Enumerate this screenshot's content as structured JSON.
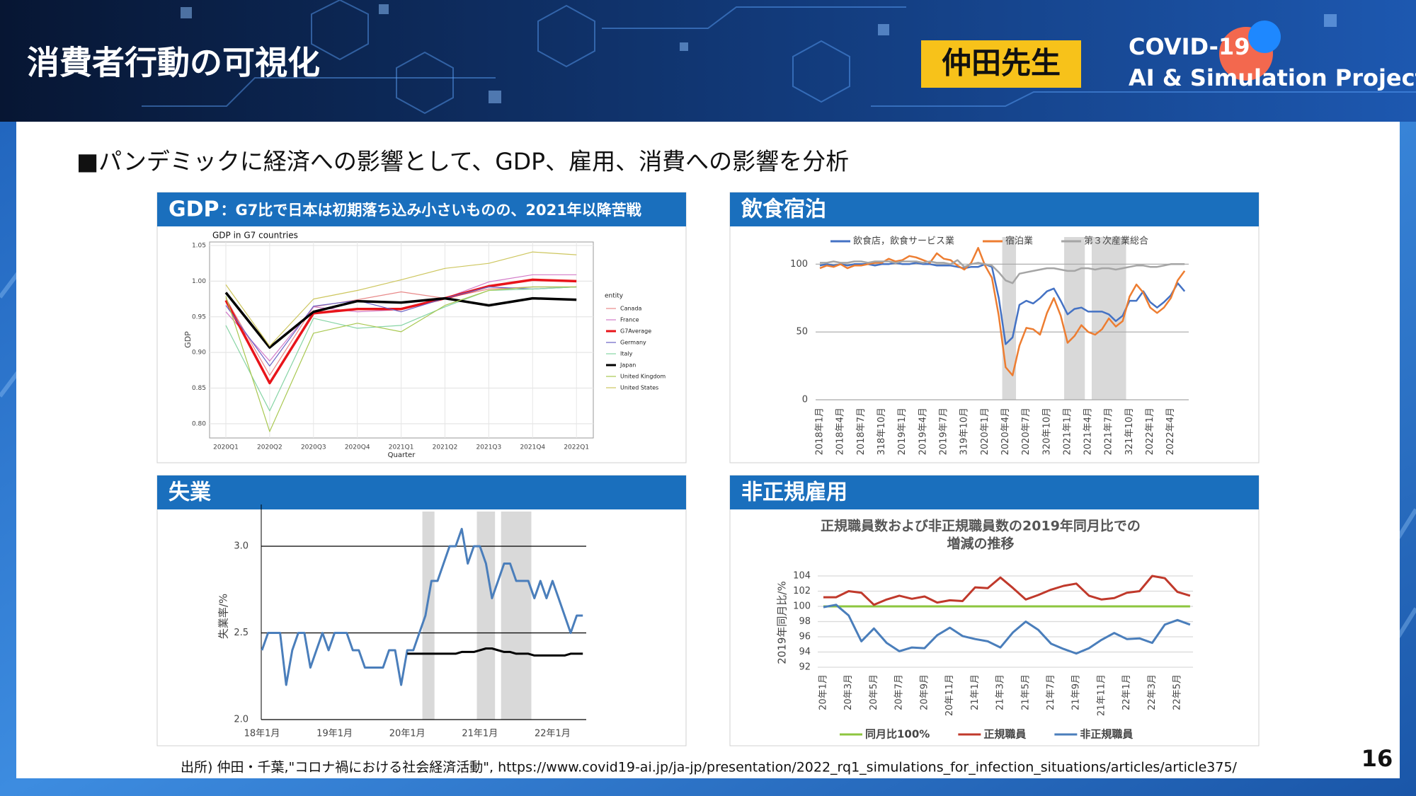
{
  "header": {
    "title": "消費者行動の可視化",
    "badge": "仲田先生",
    "project": [
      "COVID-19",
      "AI & Simulation Project"
    ]
  },
  "lead": "■パンデミックに経済への影響として、GDP、雇用、消費への影響を分析",
  "source": "出所) 仲田・千葉,\"コロナ禍における社会経済活動\", https://www.covid19-ai.jp/ja-jp/presentation/2022_rq1_simulations_for_infection_situations/articles/article375/",
  "page_number": "16",
  "chart_data": [
    {
      "type": "line",
      "heading": "GDP",
      "heading_note": "：G7比で日本は初期落ち込み小さいものの、2021年以降苦戦",
      "title": "GDP in G7 countries",
      "xlabel": "Quarter",
      "ylabel": "GDP",
      "legend_title": "entity",
      "legend": "right",
      "grid": true,
      "categories": [
        "2020Q1",
        "2020Q2",
        "2020Q3",
        "2020Q4",
        "2021Q1",
        "2021Q2",
        "2021Q3",
        "2021Q4",
        "2022Q1"
      ],
      "ylim": [
        0.78,
        1.055
      ],
      "yticks": [
        {
          "value": 0.8,
          "label": "0.80"
        },
        {
          "value": 0.85,
          "label": "0.85"
        },
        {
          "value": 0.9,
          "label": "0.90"
        },
        {
          "value": 0.95,
          "label": "0.95"
        },
        {
          "value": 1.0,
          "label": "1.00"
        },
        {
          "value": 1.05,
          "label": "1.05"
        }
      ],
      "series": [
        {
          "name": "Canada",
          "color": "#e88a8a",
          "linewidth": 1.2,
          "values": [
            0.976,
            0.868,
            0.964,
            0.974,
            0.985,
            0.976,
            0.989,
            0.992,
            0.992
          ]
        },
        {
          "name": "France",
          "color": "#d27ac8",
          "linewidth": 1.2,
          "values": [
            0.957,
            0.888,
            0.964,
            0.957,
            0.96,
            0.976,
            0.999,
            1.009,
            1.009
          ]
        },
        {
          "name": "G7Average",
          "color": "#e8141a",
          "linewidth": 3.5,
          "values": [
            0.973,
            0.857,
            0.955,
            0.961,
            0.961,
            0.976,
            0.993,
            1.002,
            1.0
          ]
        },
        {
          "name": "Germany",
          "color": "#6a62c4",
          "linewidth": 1.2,
          "values": [
            0.966,
            0.881,
            0.965,
            0.973,
            0.957,
            0.976,
            0.992,
            0.989,
            0.992
          ]
        },
        {
          "name": "Italy",
          "color": "#86d4a4",
          "linewidth": 1.2,
          "values": [
            0.938,
            0.818,
            0.948,
            0.934,
            0.938,
            0.964,
            0.987,
            0.989,
            0.992
          ]
        },
        {
          "name": "Japan",
          "color": "#000000",
          "linewidth": 3.5,
          "values": [
            0.984,
            0.907,
            0.957,
            0.972,
            0.97,
            0.976,
            0.966,
            0.976,
            0.974
          ]
        },
        {
          "name": "United Kingdom",
          "color": "#a8c850",
          "linewidth": 1.2,
          "values": [
            0.979,
            0.789,
            0.927,
            0.941,
            0.929,
            0.966,
            0.987,
            0.992,
            0.992
          ]
        },
        {
          "name": "United States",
          "color": "#cdc65e",
          "linewidth": 1.2,
          "values": [
            0.995,
            0.909,
            0.975,
            0.987,
            1.002,
            1.018,
            1.025,
            1.041,
            1.037
          ]
        }
      ]
    },
    {
      "type": "line",
      "heading": "飲食宿泊",
      "legend": "top",
      "grid": true,
      "categories": [
        "2018年1月",
        null,
        null,
        "2018年4月",
        null,
        null,
        "2018年7月",
        null,
        null,
        "318年10月",
        null,
        null,
        "2019年1月",
        null,
        null,
        "2019年4月",
        null,
        null,
        "2019年7月",
        null,
        null,
        "319年10月",
        null,
        null,
        "2020年1月",
        null,
        null,
        "2020年4月",
        null,
        null,
        "2020年7月",
        null,
        null,
        "320年10月",
        null,
        null,
        "2021年1月",
        null,
        null,
        "2021年4月",
        null,
        null,
        "2021年7月",
        null,
        null,
        "321年10月",
        null,
        null,
        "2022年1月",
        null,
        null,
        "2022年4月",
        null,
        null
      ],
      "ylim": [
        0,
        120
      ],
      "yticks": [
        0,
        50,
        100
      ],
      "shaded": [
        [
          27,
          28
        ],
        [
          36,
          38
        ],
        [
          40,
          44
        ]
      ],
      "series": [
        {
          "name": "飲食店，飲食サービス業",
          "color": "#4472c4",
          "linewidth": 2.5,
          "values": [
            99,
            100,
            99,
            100,
            99,
            100,
            100,
            100,
            99,
            100,
            100,
            101,
            100,
            100,
            101,
            100,
            100,
            99,
            99,
            99,
            98,
            97,
            98,
            98,
            100,
            98,
            75,
            41,
            46,
            70,
            73,
            71,
            75,
            80,
            82,
            73,
            63,
            67,
            68,
            65,
            65,
            65,
            63,
            58,
            62,
            73,
            73,
            80,
            72,
            68,
            72,
            77,
            86,
            80
          ]
        },
        {
          "name": "宿泊業",
          "color": "#ed7d31",
          "linewidth": 2.5,
          "values": [
            97,
            99,
            98,
            100,
            97,
            99,
            99,
            100,
            101,
            101,
            104,
            102,
            103,
            106,
            105,
            103,
            101,
            108,
            104,
            103,
            99,
            96,
            101,
            112,
            99,
            90,
            62,
            24,
            18,
            40,
            53,
            52,
            48,
            64,
            75,
            62,
            42,
            47,
            55,
            50,
            48,
            52,
            60,
            54,
            58,
            76,
            85,
            79,
            68,
            64,
            68,
            75,
            88,
            95
          ]
        },
        {
          "name": "第３次産業総合",
          "color": "#a5a5a5",
          "linewidth": 2.5,
          "values": [
            101,
            101,
            102,
            101,
            101,
            102,
            102,
            101,
            102,
            102,
            102,
            101,
            102,
            102,
            102,
            101,
            102,
            101,
            101,
            100,
            103,
            98,
            100,
            101,
            100,
            99,
            94,
            88,
            86,
            93,
            94,
            95,
            96,
            97,
            97,
            96,
            95,
            95,
            97,
            97,
            96,
            97,
            97,
            96,
            97,
            98,
            99,
            99,
            98,
            98,
            99,
            100,
            100,
            100
          ]
        }
      ]
    },
    {
      "type": "line",
      "heading": "失業",
      "ylabel": "失業率/%",
      "grid": true,
      "categories": [
        "18年1月",
        null,
        null,
        null,
        null,
        null,
        null,
        null,
        null,
        null,
        null,
        null,
        "19年1月",
        null,
        null,
        null,
        null,
        null,
        null,
        null,
        null,
        null,
        null,
        null,
        "20年1月",
        null,
        null,
        null,
        null,
        null,
        null,
        null,
        null,
        null,
        null,
        null,
        "21年1月",
        null,
        null,
        null,
        null,
        null,
        null,
        null,
        null,
        null,
        null,
        null,
        "22年1月",
        null,
        null,
        null,
        null,
        null
      ],
      "ylim": [
        2.0,
        3.2
      ],
      "yticks": [
        {
          "value": 2.0,
          "label": "2.0"
        },
        {
          "value": 2.5,
          "label": "2.5"
        },
        {
          "value": 3.0,
          "label": "3.0"
        }
      ],
      "shaded": [
        [
          27,
          28
        ],
        [
          36,
          38
        ],
        [
          40,
          44
        ]
      ],
      "series": [
        {
          "color": "#4a7ebb",
          "linewidth": 3,
          "values": [
            2.4,
            2.5,
            2.5,
            2.5,
            2.2,
            2.4,
            2.5,
            2.5,
            2.3,
            2.4,
            2.5,
            2.4,
            2.5,
            2.5,
            2.5,
            2.4,
            2.4,
            2.3,
            2.3,
            2.3,
            2.3,
            2.4,
            2.4,
            2.2,
            2.4,
            2.4,
            2.5,
            2.6,
            2.8,
            2.8,
            2.9,
            3.0,
            3.0,
            3.1,
            2.9,
            3.0,
            3.0,
            2.9,
            2.7,
            2.8,
            2.9,
            2.9,
            2.8,
            2.8,
            2.8,
            2.7,
            2.8,
            2.7,
            2.8,
            2.7,
            2.6,
            2.5,
            2.6,
            2.6
          ]
        },
        {
          "color": "#000000",
          "linewidth": 3,
          "values": [
            null,
            null,
            null,
            null,
            null,
            null,
            null,
            null,
            null,
            null,
            null,
            null,
            null,
            null,
            null,
            null,
            null,
            null,
            null,
            null,
            null,
            null,
            null,
            null,
            2.38,
            2.38,
            2.38,
            2.38,
            2.38,
            2.38,
            2.38,
            2.38,
            2.38,
            2.39,
            2.39,
            2.39,
            2.4,
            2.41,
            2.41,
            2.4,
            2.39,
            2.39,
            2.38,
            2.38,
            2.38,
            2.37,
            2.37,
            2.37,
            2.37,
            2.37,
            2.37,
            2.38,
            2.38,
            2.38
          ]
        }
      ]
    },
    {
      "type": "line",
      "heading": "非正規雇用",
      "title": [
        "正規職員数および非正規職員数の2019年同月比での",
        "増減の推移"
      ],
      "ylabel": "2019年同月比/%",
      "legend": "bottom",
      "grid": true,
      "categories": [
        "20年1月",
        null,
        "20年3月",
        null,
        "20年5月",
        null,
        "20年7月",
        null,
        "20年9月",
        null,
        "20年11月",
        null,
        "21年1月",
        null,
        "21年3月",
        null,
        "21年5月",
        null,
        "21年7月",
        null,
        "21年9月",
        null,
        "21年11月",
        null,
        "22年1月",
        null,
        "22年3月",
        null,
        "22年5月",
        null
      ],
      "ylim": [
        92,
        104
      ],
      "yticks": [
        92,
        94,
        96,
        98,
        100,
        102,
        104
      ],
      "series": [
        {
          "name": "同月比100%",
          "color": "#8dc63f",
          "linewidth": 3,
          "values": [
            100,
            100,
            100,
            100,
            100,
            100,
            100,
            100,
            100,
            100,
            100,
            100,
            100,
            100,
            100,
            100,
            100,
            100,
            100,
            100,
            100,
            100,
            100,
            100,
            100,
            100,
            100,
            100,
            100,
            100
          ]
        },
        {
          "name": "正規職員",
          "color": "#c0392b",
          "linewidth": 3,
          "values": [
            101.2,
            101.2,
            102.0,
            101.8,
            100.2,
            100.9,
            101.4,
            101.0,
            101.3,
            100.5,
            100.8,
            100.7,
            102.5,
            102.4,
            103.8,
            102.4,
            100.9,
            101.5,
            102.2,
            102.7,
            103.0,
            101.4,
            100.9,
            101.1,
            101.8,
            102.0,
            104.0,
            103.7,
            101.9,
            101.4
          ]
        },
        {
          "name": "非正規職員",
          "color": "#4a7ebb",
          "linewidth": 3,
          "values": [
            99.9,
            100.2,
            98.8,
            95.4,
            97.1,
            95.2,
            94.1,
            94.6,
            94.5,
            96.2,
            97.2,
            96.1,
            95.7,
            95.4,
            94.6,
            96.6,
            98.0,
            96.9,
            95.1,
            94.4,
            93.8,
            94.5,
            95.6,
            96.5,
            95.7,
            95.8,
            95.2,
            97.6,
            98.2,
            97.6
          ]
        }
      ]
    }
  ]
}
